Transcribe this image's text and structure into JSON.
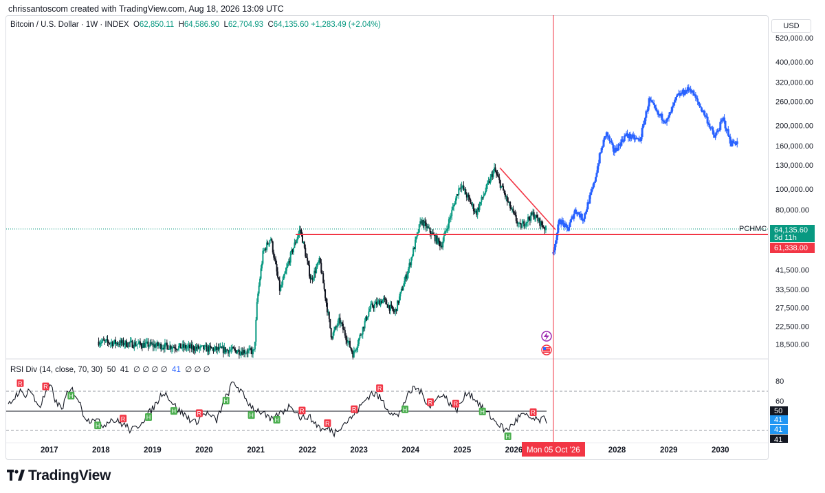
{
  "header": {
    "creator_line": "chrissantoscom created with TradingView.com, Aug 18, 2026 13:09 UTC"
  },
  "legend": {
    "symbol": "Bitcoin / U.S. Dollar · 1W · INDEX",
    "o_label": "O",
    "o_value": "62,850.11",
    "h_label": "H",
    "h_value": "64,586.90",
    "l_label": "L",
    "l_value": "62,704.93",
    "c_label": "C",
    "c_value": "64,135.60",
    "change": "+1,283.49 (+2.04%)"
  },
  "rsi_legend": {
    "name": "RSI Div (14, close, 70, 30)",
    "v1": "50",
    "v2": "41",
    "slots": "∅ ∅ ∅ ∅",
    "v3": "41",
    "slots2": "∅ ∅ ∅"
  },
  "currency_button": "USD",
  "price_tags": {
    "last_price": "64,135.60",
    "countdown": "5d 11h",
    "line_level": "61,338.00",
    "line_label": "PCHMC"
  },
  "rsi_tags": {
    "tag50": "50",
    "tag41a": "41",
    "tag41b": "41",
    "tag41c": "41"
  },
  "crosshair_date": "Mon 05 Oct '26",
  "footer": {
    "brand": "TradingView"
  },
  "colors": {
    "up": "#089981",
    "down": "#131722",
    "projection": "#2962ff",
    "red": "#f23645",
    "green": "#4caf50"
  },
  "chart_data": [
    {
      "type": "candlestick",
      "title": "Bitcoin / U.S. Dollar · 1W · INDEX",
      "scale": "log",
      "y_ticks": [
        "520,000.00",
        "400,000.00",
        "320,000.00",
        "260,000.00",
        "200,000.00",
        "160,000.00",
        "130,000.00",
        "100,000.00",
        "80,000.00",
        "41,500.00",
        "33,500.00",
        "27,500.00",
        "22,500.00",
        "18,500.00"
      ],
      "x_ticks": [
        "2017",
        "2018",
        "2019",
        "2020",
        "2021",
        "2022",
        "2023",
        "2024",
        "2025",
        "2026",
        "2028",
        "2029",
        "2030"
      ],
      "price_path": [
        {
          "date": "2017-12-15",
          "price": 19000
        },
        {
          "date": "2020-12-20",
          "price": 17000
        },
        {
          "date": "2021-01-10",
          "price": 30000
        },
        {
          "date": "2021-02-20",
          "price": 50000
        },
        {
          "date": "2021-04-15",
          "price": 59000
        },
        {
          "date": "2021-06-20",
          "price": 33000
        },
        {
          "date": "2021-09-01",
          "price": 48000
        },
        {
          "date": "2021-11-10",
          "price": 65000
        },
        {
          "date": "2022-01-25",
          "price": 37000
        },
        {
          "date": "2022-03-28",
          "price": 46000
        },
        {
          "date": "2022-06-20",
          "price": 20000
        },
        {
          "date": "2022-08-15",
          "price": 24000
        },
        {
          "date": "2022-11-20",
          "price": 16500
        },
        {
          "date": "2023-03-20",
          "price": 27500
        },
        {
          "date": "2023-06-20",
          "price": 30000
        },
        {
          "date": "2023-09-10",
          "price": 26000
        },
        {
          "date": "2023-12-20",
          "price": 43000
        },
        {
          "date": "2024-03-14",
          "price": 71000
        },
        {
          "date": "2024-08-05",
          "price": 54000
        },
        {
          "date": "2024-12-17",
          "price": 106000
        },
        {
          "date": "2025-04-08",
          "price": 77000
        },
        {
          "date": "2025-08-14",
          "price": 124000
        },
        {
          "date": "2025-11-20",
          "price": 86000
        },
        {
          "date": "2026-02-10",
          "price": 66000
        },
        {
          "date": "2026-05-15",
          "price": 76000
        },
        {
          "date": "2026-08-18",
          "price": 64135.6
        }
      ],
      "projection_path": [
        {
          "date": "2026-10-05",
          "price": 50000
        },
        {
          "date": "2026-11-20",
          "price": 72000
        },
        {
          "date": "2027-01-15",
          "price": 64000
        },
        {
          "date": "2027-03-10",
          "price": 80000
        },
        {
          "date": "2027-05-05",
          "price": 72000
        },
        {
          "date": "2027-07-20",
          "price": 105000
        },
        {
          "date": "2027-09-01",
          "price": 145000
        },
        {
          "date": "2027-10-15",
          "price": 185000
        },
        {
          "date": "2027-12-10",
          "price": 150000
        },
        {
          "date": "2028-03-01",
          "price": 180000
        },
        {
          "date": "2028-06-10",
          "price": 170000
        },
        {
          "date": "2028-08-15",
          "price": 265000
        },
        {
          "date": "2028-10-15",
          "price": 225000
        },
        {
          "date": "2028-12-20",
          "price": 210000
        },
        {
          "date": "2029-03-01",
          "price": 275000
        },
        {
          "date": "2029-06-01",
          "price": 300000
        },
        {
          "date": "2029-07-20",
          "price": 260000
        },
        {
          "date": "2029-09-20",
          "price": 220000
        },
        {
          "date": "2029-11-20",
          "price": 175000
        },
        {
          "date": "2030-01-20",
          "price": 215000
        },
        {
          "date": "2030-03-15",
          "price": 165000
        },
        {
          "date": "2030-05-01",
          "price": 168000
        }
      ],
      "horizontal_line": {
        "label": "PCHMC",
        "price": 61338
      },
      "trendline": {
        "from": {
          "date": "2025-08-14",
          "price": 124000
        },
        "to": {
          "date": "2026-09-15",
          "price": 61338
        }
      },
      "last_price": 64135.6,
      "crosshair": "Mon 05 Oct '26"
    },
    {
      "type": "line",
      "title": "RSI Div (14, close, 70, 30)",
      "y_ticks": [
        "80",
        "60"
      ],
      "levels": [
        70,
        50,
        30
      ],
      "last_values": {
        "rsi": 41,
        "level": 50
      },
      "series": [
        {
          "values": [
            55,
            62,
            70,
            65,
            72,
            60,
            55,
            68,
            74,
            58,
            52,
            66,
            71,
            63,
            48,
            40,
            44,
            38,
            36,
            42,
            40,
            38,
            35,
            30,
            33,
            40,
            45,
            52,
            60,
            70,
            64,
            56,
            50,
            46,
            42,
            38,
            44,
            48,
            44,
            40,
            55,
            66,
            78,
            74,
            65,
            58,
            52,
            50,
            46,
            40,
            43,
            48,
            52,
            56,
            48,
            42,
            45,
            40,
            35,
            30,
            33,
            28,
            34,
            38,
            42,
            48,
            55,
            62,
            68,
            66,
            60,
            52,
            48,
            44,
            58,
            66,
            74,
            70,
            62,
            55,
            60,
            68,
            62,
            56,
            52,
            60,
            70,
            64,
            58,
            50,
            46,
            40,
            36,
            30,
            34,
            40,
            46,
            44,
            42,
            40,
            41
          ]
        }
      ],
      "markers": [
        {
          "label": "R",
          "type": "bearish"
        },
        {
          "label": "R",
          "type": "bearish"
        },
        {
          "label": "H",
          "type": "bullish"
        },
        {
          "label": "H",
          "type": "bullish"
        },
        {
          "label": "R",
          "type": "bearish"
        },
        {
          "label": "H",
          "type": "bullish"
        },
        {
          "label": "H",
          "type": "bullish"
        },
        {
          "label": "R",
          "type": "bearish"
        },
        {
          "label": "H",
          "type": "bullish"
        },
        {
          "label": "H",
          "type": "bullish"
        },
        {
          "label": "H",
          "type": "bullish"
        },
        {
          "label": "R",
          "type": "bearish"
        },
        {
          "label": "R",
          "type": "bearish"
        },
        {
          "label": "R",
          "type": "bearish"
        },
        {
          "label": "R",
          "type": "bearish"
        },
        {
          "label": "H",
          "type": "bullish"
        },
        {
          "label": "R",
          "type": "bearish"
        },
        {
          "label": "R",
          "type": "bearish"
        },
        {
          "label": "H",
          "type": "bullish"
        },
        {
          "label": "H",
          "type": "bullish"
        },
        {
          "label": "R",
          "type": "bearish"
        }
      ]
    }
  ]
}
